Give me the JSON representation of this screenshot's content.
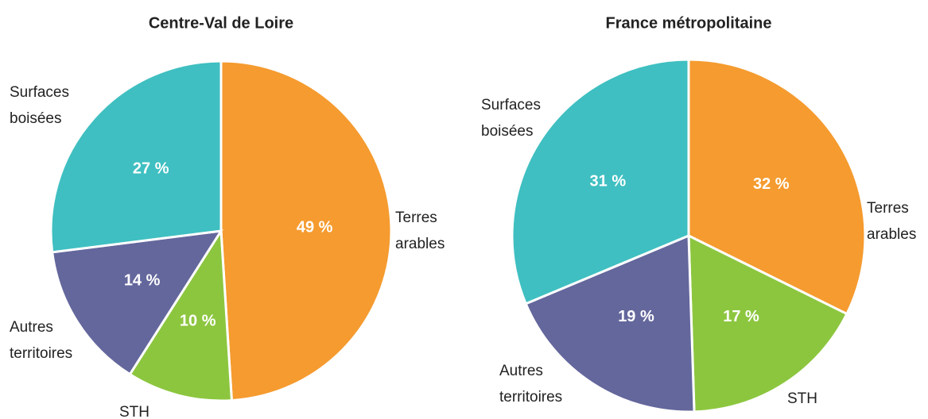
{
  "chart_data": [
    {
      "type": "pie",
      "title": "Centre-Val de Loire",
      "categories": [
        "Terres arables",
        "STH",
        "Autres territoires",
        "Surfaces boisées"
      ],
      "values": [
        49,
        10,
        14,
        27
      ],
      "value_labels": [
        "49 %",
        "10 %",
        "14 %",
        "27 %"
      ],
      "colors": [
        "#f59b2f",
        "#8cc63f",
        "#64679c",
        "#3fbfc1"
      ]
    },
    {
      "type": "pie",
      "title": "France métropolitaine",
      "categories": [
        "Terres arables",
        "STH",
        "Autres territoires",
        "Surfaces boisées"
      ],
      "values": [
        32,
        17,
        19,
        31
      ],
      "value_labels": [
        "32 %",
        "17 %",
        "19 %",
        "31 %"
      ],
      "colors": [
        "#f59b2f",
        "#8cc63f",
        "#64679c",
        "#3fbfc1"
      ]
    }
  ]
}
